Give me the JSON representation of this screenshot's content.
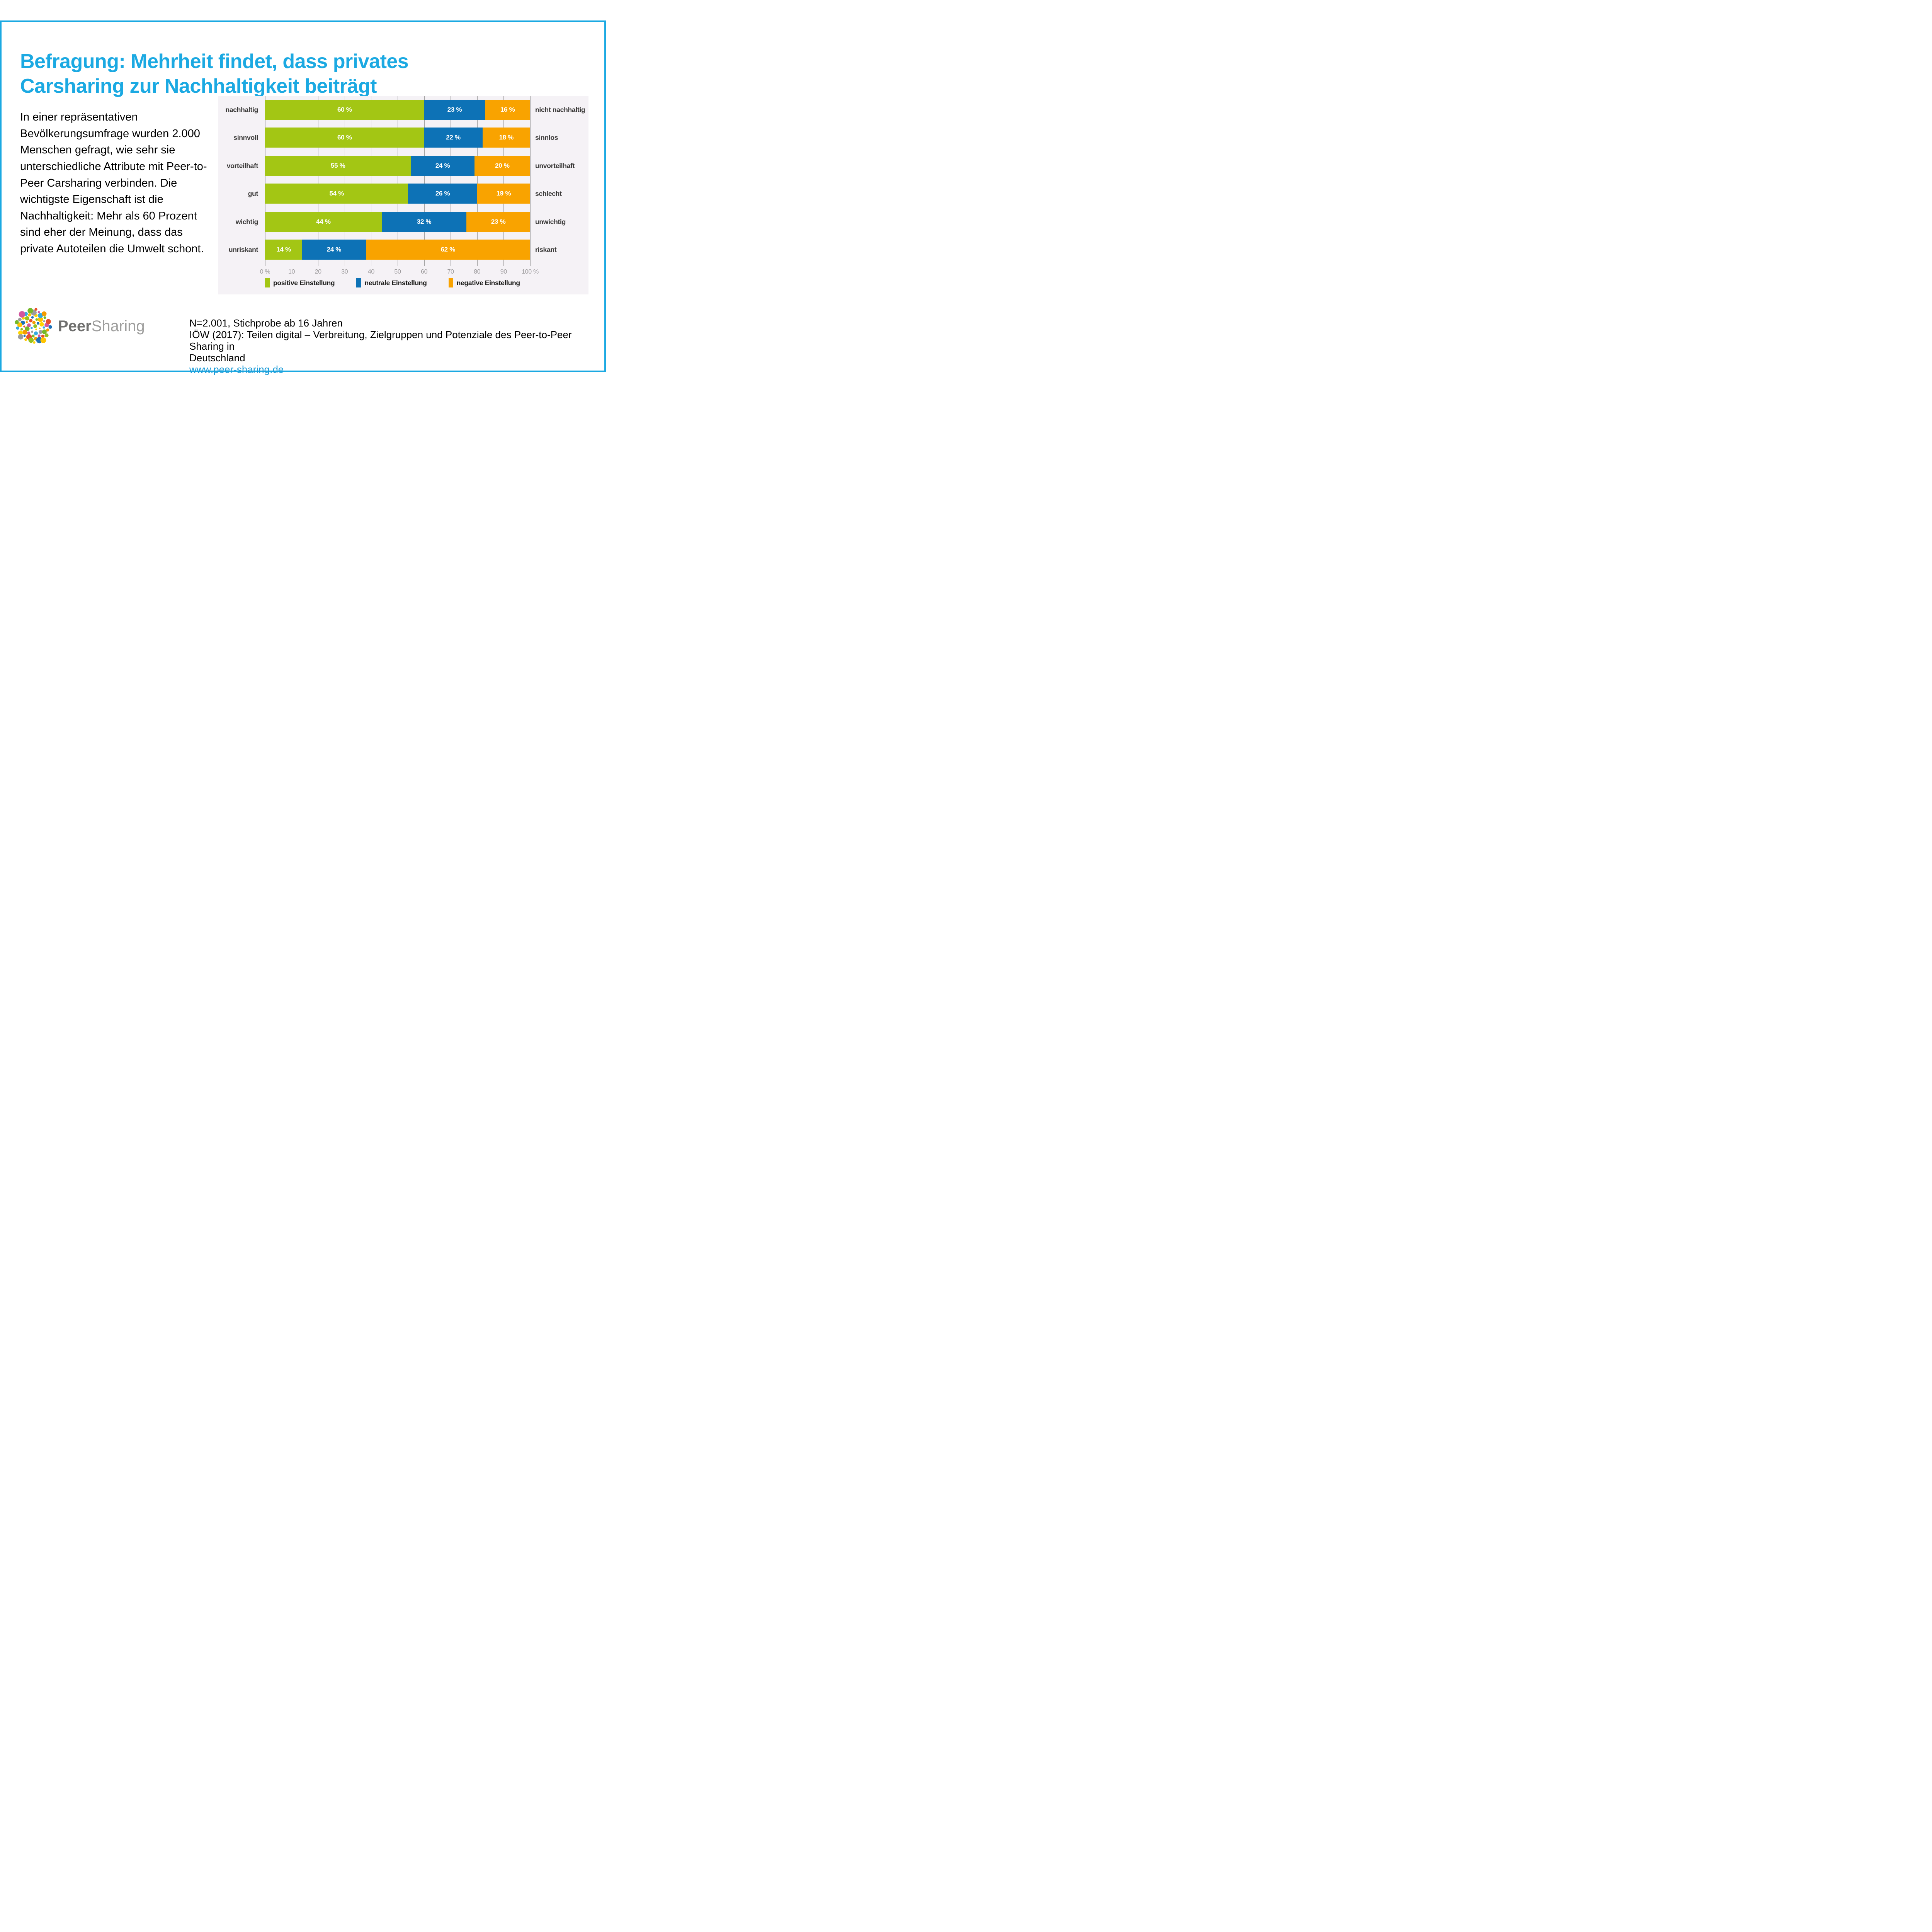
{
  "title": "Befragung: Mehrheit findet, dass privates\nCarsharing zur Nachhaltigkeit beiträgt",
  "intro": "In einer repräsentativen Bevölkerungsumfrage wurden 2.000 Menschen gefragt, wie sehr sie unterschiedliche Attribute mit Peer-to-Peer Carsharing verbinden. Die wichtigste Eigenschaft ist die Nachhaltigkeit: Mehr als 60 Prozent sind eher der Meinung, dass das private Autoteilen die Umwelt schont.",
  "chart_data": {
    "type": "bar",
    "stacked": true,
    "orientation": "horizontal",
    "categories_left": [
      "nachhaltig",
      "sinnvoll",
      "vorteilhaft",
      "gut",
      "wichtig",
      "unriskant"
    ],
    "categories_right": [
      "nicht nachhaltig",
      "sinnlos",
      "unvorteilhaft",
      "schlecht",
      "unwichtig",
      "riskant"
    ],
    "series": [
      {
        "name": "positive Einstellung",
        "color": "#A3C614",
        "values": [
          60,
          60,
          55,
          54,
          44,
          14
        ]
      },
      {
        "name": "neutrale Einstellung",
        "color": "#0D72B6",
        "values": [
          23,
          22,
          24,
          26,
          32,
          24
        ]
      },
      {
        "name": "negative Einstellung",
        "color": "#F9A300",
        "values": [
          16,
          18,
          20,
          19,
          23,
          62
        ]
      }
    ],
    "x_ticks": [
      "0 %",
      "10",
      "20",
      "30",
      "40",
      "50",
      "60",
      "70",
      "80",
      "90",
      "100 %"
    ],
    "xlim": [
      0,
      100
    ],
    "value_suffix": " %",
    "grid": true,
    "legend_position": "bottom"
  },
  "source": {
    "lines": [
      "N=2.001, Stichprobe ab 16 Jahren",
      "IÖW (2017): Teilen digital – Verbreitung, Zielgruppen und Potenziale des Peer-to-Peer Sharing in",
      "Deutschland"
    ],
    "link": "www.peer-sharing.de"
  },
  "logo": {
    "word_bold": "Peer",
    "word_light": "Sharing",
    "dot_colors": [
      "#95C11F",
      "#36A9E1",
      "#F59C00",
      "#FFD500",
      "#D3569E",
      "#1D71B8",
      "#9D9D9C",
      "#E8502A",
      "#FFC400",
      "#76B82A"
    ]
  },
  "colors": {
    "accent_cyan": "#1BA9E2",
    "link_blue": "#1E9CD8",
    "bar_green": "#A3C614",
    "bar_blue": "#0D72B6",
    "bar_orange": "#F9A300",
    "panel_bg": "#F5F2F6",
    "grid": "#9E9E9E",
    "tick_text": "#9B999B",
    "label_text": "#3B3A39"
  }
}
